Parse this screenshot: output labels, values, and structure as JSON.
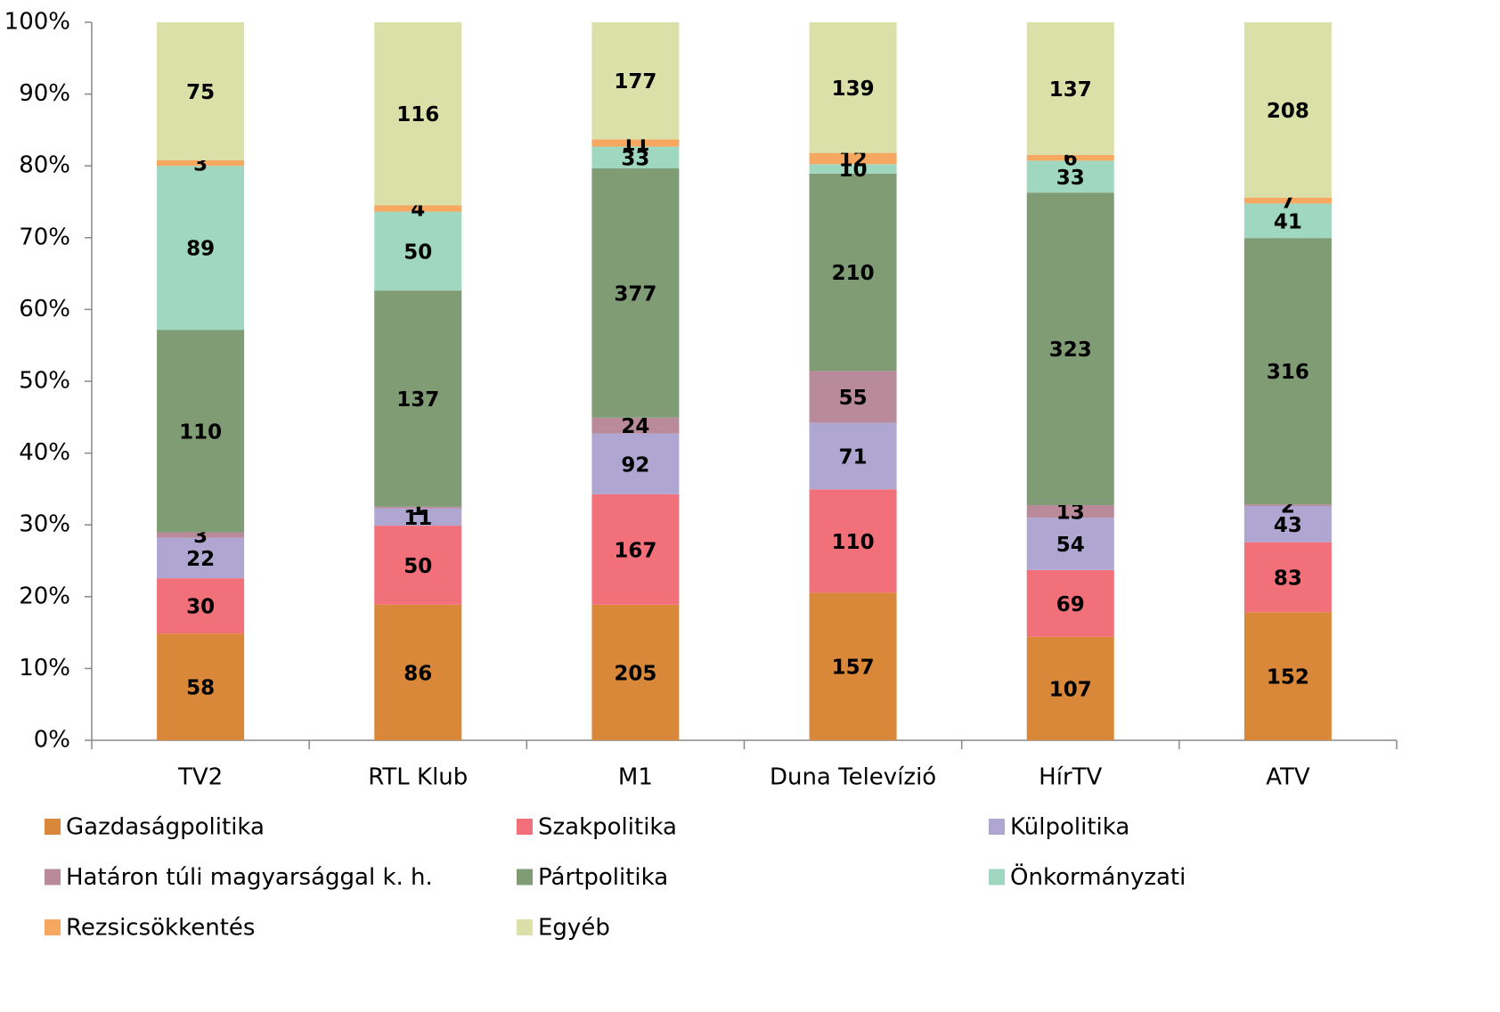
{
  "chart_data": {
    "type": "bar",
    "stacking": "percent",
    "categories": [
      "TV2",
      "RTL Klub",
      "M1",
      "Duna Televízió",
      "HírTV",
      "ATV"
    ],
    "series": [
      {
        "name": "Gazdaságpolitika",
        "color": "#d9883a",
        "values": [
          58,
          86,
          205,
          157,
          107,
          152
        ]
      },
      {
        "name": "Szakpolitika",
        "color": "#f2707a",
        "values": [
          30,
          50,
          167,
          110,
          69,
          83
        ]
      },
      {
        "name": "Külpolitika",
        "color": "#b0a6d2",
        "values": [
          22,
          11,
          92,
          71,
          54,
          43
        ]
      },
      {
        "name": "Határon túli magyarsággal k. h.",
        "color": "#b98a9a",
        "values": [
          3,
          1,
          24,
          55,
          13,
          2
        ]
      },
      {
        "name": "Pártpolitika",
        "color": "#7f9c74",
        "values": [
          110,
          137,
          377,
          210,
          323,
          316
        ]
      },
      {
        "name": "Önkormányzati",
        "color": "#9fd7c1",
        "values": [
          89,
          50,
          33,
          10,
          33,
          41
        ]
      },
      {
        "name": "Rezsicsökkentés",
        "color": "#f7a860",
        "values": [
          3,
          4,
          11,
          12,
          6,
          7
        ]
      },
      {
        "name": "Egyéb",
        "color": "#dbe0a8",
        "values": [
          75,
          116,
          177,
          139,
          137,
          208
        ]
      }
    ],
    "ylim": [
      0,
      100
    ],
    "yticks": [
      {
        "value": 0,
        "label": "0%"
      },
      {
        "value": 10,
        "label": "10%"
      },
      {
        "value": 20,
        "label": "20%"
      },
      {
        "value": 30,
        "label": "30%"
      },
      {
        "value": 40,
        "label": "40%"
      },
      {
        "value": 50,
        "label": "50%"
      },
      {
        "value": 60,
        "label": "60%"
      },
      {
        "value": 70,
        "label": "70%"
      },
      {
        "value": 80,
        "label": "80%"
      },
      {
        "value": 90,
        "label": "90%"
      },
      {
        "value": 100,
        "label": "100%"
      }
    ],
    "grid": false,
    "legend": "bottom"
  }
}
